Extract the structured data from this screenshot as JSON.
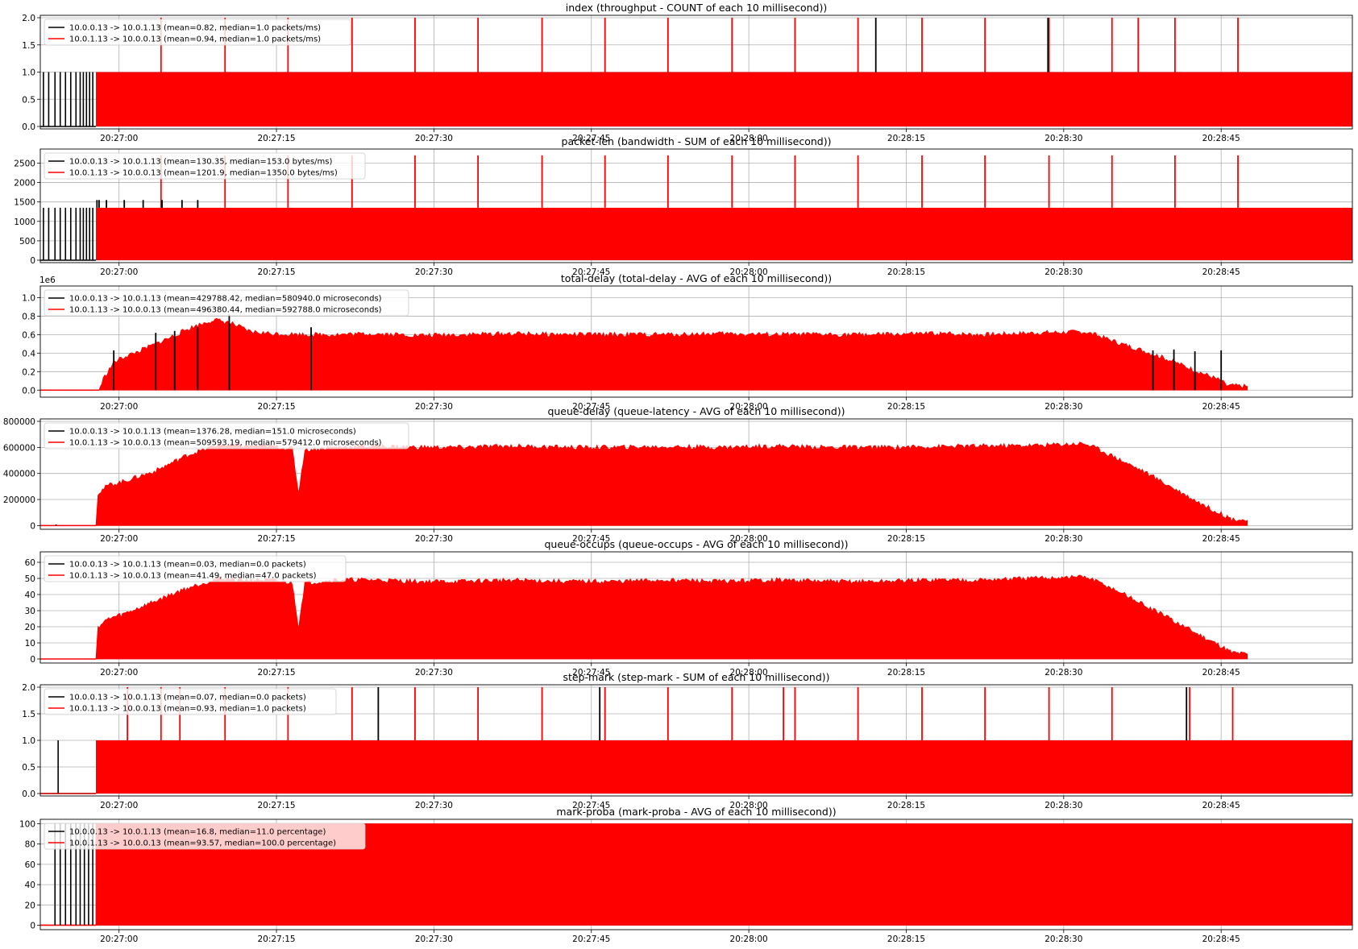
{
  "figure": {
    "x_ticks": [
      "20:27:00",
      "20:27:15",
      "20:27:30",
      "20:27:45",
      "20:28:00",
      "20:28:15",
      "20:28:30",
      "20:28:45"
    ],
    "series_colors": [
      "#000000",
      "#ff0000"
    ]
  },
  "chart_data": [
    {
      "type": "line",
      "title": "index (throughput - COUNT of each 10 millisecond))",
      "ylim": [
        0,
        2
      ],
      "y_ticks": [
        "0.0",
        "0.5",
        "1.0",
        "1.5",
        "2.0"
      ],
      "y_offset": "",
      "baseline": 1.0,
      "legend": [
        "10.0.0.13 -> 10.0.1.13 (mean=0.82, median=1.0 packets/ms)",
        "10.0.1.13 -> 10.0.0.13 (mean=0.94, median=1.0 packets/ms)"
      ],
      "black_spikes": [
        0.3,
        0.8,
        1.4,
        1.9,
        2.4,
        2.9,
        3.4,
        3.8,
        4.1,
        4.4,
        4.7,
        5.0,
        86.5,
        88.2
      ],
      "black_value": 1.0,
      "black_peaks": [
        79.6,
        96.0
      ],
      "black_peak_value": 2.0,
      "red_spikes": [
        11.5,
        17.6,
        23.6,
        29.7,
        35.7,
        41.7,
        47.8,
        53.8,
        59.8,
        65.9,
        71.9,
        77.9,
        84.0,
        90.0,
        96.1,
        102.1,
        104.6,
        108.1,
        114.1
      ],
      "red_spike_value": 2.0
    },
    {
      "type": "line",
      "title": "packet-len (bandwidth - SUM of each 10 millisecond))",
      "ylim": [
        0,
        2800
      ],
      "y_ticks": [
        "0",
        "500",
        "1000",
        "1500",
        "2000",
        "2500"
      ],
      "y_offset": "",
      "baseline": 1350,
      "legend": [
        "10.0.0.13 -> 10.0.1.13 (mean=130.35, median=153.0 bytes/ms)",
        "10.0.1.13 -> 10.0.0.13 (mean=1201.9, median=1350.0 bytes/ms)"
      ],
      "black_spikes": [
        0.3,
        0.8,
        1.4,
        1.9,
        2.4,
        2.9,
        3.4,
        3.8,
        4.1,
        4.4,
        4.7,
        5.0
      ],
      "black_value": 1350,
      "black_peaks": [
        5.4,
        5.6,
        6.3,
        8.0,
        9.8,
        11.6,
        13.5,
        15.0
      ],
      "black_peak_value": 1550,
      "red_spikes": [
        11.5,
        17.6,
        23.6,
        29.7,
        35.7,
        41.7,
        47.8,
        53.8,
        59.8,
        65.9,
        71.9,
        77.9,
        84.0,
        90.0,
        96.1,
        102.1,
        108.1,
        114.1
      ],
      "red_spike_value": 2700
    },
    {
      "type": "area",
      "title": "total-delay (total-delay - AVG of each 10 millisecond))",
      "ylim": [
        -0.05,
        1.1
      ],
      "y_ticks": [
        "0.0",
        "0.2",
        "0.4",
        "0.6",
        "0.8",
        "1.0"
      ],
      "y_offset": "1e6",
      "envelope": [
        [
          0,
          0
        ],
        [
          5.6,
          0
        ],
        [
          6.0,
          0.12
        ],
        [
          7.0,
          0.3
        ],
        [
          8.0,
          0.36
        ],
        [
          9.0,
          0.4
        ],
        [
          10.0,
          0.45
        ],
        [
          11.0,
          0.5
        ],
        [
          12.0,
          0.55
        ],
        [
          13.0,
          0.6
        ],
        [
          14.0,
          0.66
        ],
        [
          15.0,
          0.7
        ],
        [
          16.5,
          0.76
        ],
        [
          18.0,
          0.73
        ],
        [
          20.0,
          0.63
        ],
        [
          22.0,
          0.61
        ],
        [
          25.0,
          0.6
        ],
        [
          28.0,
          0.6
        ],
        [
          32.0,
          0.61
        ],
        [
          36.0,
          0.59
        ],
        [
          40.0,
          0.6
        ],
        [
          45.0,
          0.61
        ],
        [
          50.0,
          0.6
        ],
        [
          55.0,
          0.6
        ],
        [
          60.0,
          0.6
        ],
        [
          65.0,
          0.61
        ],
        [
          70.0,
          0.6
        ],
        [
          75.0,
          0.6
        ],
        [
          80.0,
          0.6
        ],
        [
          85.0,
          0.61
        ],
        [
          90.0,
          0.6
        ],
        [
          95.0,
          0.62
        ],
        [
          99.5,
          0.63
        ],
        [
          101.0,
          0.58
        ],
        [
          103.0,
          0.5
        ],
        [
          105.0,
          0.43
        ],
        [
          107.0,
          0.35
        ],
        [
          109.0,
          0.26
        ],
        [
          111.0,
          0.17
        ],
        [
          112.5,
          0.1
        ],
        [
          113.0,
          0.05
        ],
        [
          115.0,
          0.04
        ]
      ],
      "legend": [
        "10.0.0.13 -> 10.0.1.13 (mean=429788.42, median=580940.0 microseconds)",
        "10.0.1.13 -> 10.0.0.13 (mean=496380.44, median=592788.0 microseconds)"
      ],
      "black_peaks": [
        [
          7.0,
          0.43
        ],
        [
          11.0,
          0.62
        ],
        [
          12.8,
          0.64
        ],
        [
          15.0,
          0.68
        ],
        [
          18.0,
          0.82
        ],
        [
          25.8,
          0.68
        ],
        [
          106.0,
          0.43
        ],
        [
          108.0,
          0.44
        ],
        [
          110.0,
          0.42
        ],
        [
          112.5,
          0.43
        ]
      ]
    },
    {
      "type": "area",
      "title": "queue-delay (queue-latency - AVG of each 10 millisecond))",
      "ylim": [
        -10000,
        800000
      ],
      "y_ticks": [
        "0",
        "200000",
        "400000",
        "600000",
        "800000"
      ],
      "y_offset": "",
      "envelope": [
        [
          0,
          0
        ],
        [
          5.3,
          0
        ],
        [
          5.5,
          250000
        ],
        [
          6.5,
          310000
        ],
        [
          8.0,
          340000
        ],
        [
          9.5,
          380000
        ],
        [
          11.0,
          420000
        ],
        [
          12.5,
          480000
        ],
        [
          14.0,
          540000
        ],
        [
          15.5,
          580000
        ],
        [
          17.0,
          620000
        ],
        [
          19.0,
          610000
        ],
        [
          21.0,
          610000
        ],
        [
          23.0,
          600000
        ],
        [
          24.0,
          590000
        ],
        [
          24.6,
          250000
        ],
        [
          25.2,
          580000
        ],
        [
          28.0,
          600000
        ],
        [
          32.0,
          610000
        ],
        [
          36.0,
          600000
        ],
        [
          40.0,
          600000
        ],
        [
          45.0,
          610000
        ],
        [
          50.0,
          600000
        ],
        [
          55.0,
          600000
        ],
        [
          60.0,
          605000
        ],
        [
          65.0,
          600000
        ],
        [
          70.0,
          610000
        ],
        [
          75.0,
          600000
        ],
        [
          80.0,
          600000
        ],
        [
          85.0,
          605000
        ],
        [
          90.0,
          610000
        ],
        [
          95.0,
          615000
        ],
        [
          99.5,
          630000
        ],
        [
          101.0,
          580000
        ],
        [
          103.0,
          500000
        ],
        [
          105.0,
          420000
        ],
        [
          107.0,
          330000
        ],
        [
          109.0,
          240000
        ],
        [
          111.0,
          150000
        ],
        [
          112.5,
          90000
        ],
        [
          113.5,
          50000
        ],
        [
          115.0,
          40000
        ]
      ],
      "legend": [
        "10.0.0.13 -> 10.0.1.13 (mean=1376.28, median=151.0 microseconds)",
        "10.0.1.13 -> 10.0.0.13 (mean=509593.19, median=579412.0 microseconds)"
      ],
      "black_peaks": [
        [
          1.5,
          8000
        ]
      ]
    },
    {
      "type": "area",
      "title": "queue-occups (queue-occups - AVG of each 10 millisecond))",
      "ylim": [
        -1,
        65
      ],
      "y_ticks": [
        "0",
        "10",
        "20",
        "30",
        "40",
        "50",
        "60"
      ],
      "y_offset": "",
      "envelope": [
        [
          0,
          0
        ],
        [
          5.3,
          0
        ],
        [
          5.5,
          20
        ],
        [
          6.5,
          25
        ],
        [
          8.0,
          28
        ],
        [
          9.5,
          32
        ],
        [
          11.0,
          36
        ],
        [
          12.5,
          40
        ],
        [
          14.0,
          44
        ],
        [
          15.5,
          47
        ],
        [
          17.0,
          50
        ],
        [
          19.0,
          49
        ],
        [
          21.0,
          49
        ],
        [
          23.0,
          48
        ],
        [
          24.0,
          47
        ],
        [
          24.6,
          20
        ],
        [
          25.2,
          47
        ],
        [
          28.0,
          49
        ],
        [
          32.0,
          49
        ],
        [
          36.0,
          48
        ],
        [
          40.0,
          48
        ],
        [
          45.0,
          49
        ],
        [
          50.0,
          48
        ],
        [
          55.0,
          48
        ],
        [
          60.0,
          49
        ],
        [
          65.0,
          48
        ],
        [
          70.0,
          49
        ],
        [
          75.0,
          48
        ],
        [
          80.0,
          48
        ],
        [
          85.0,
          49
        ],
        [
          90.0,
          49
        ],
        [
          95.0,
          50
        ],
        [
          99.5,
          51
        ],
        [
          101.0,
          47
        ],
        [
          103.0,
          41
        ],
        [
          105.0,
          34
        ],
        [
          107.0,
          27
        ],
        [
          109.0,
          20
        ],
        [
          111.0,
          13
        ],
        [
          112.5,
          8
        ],
        [
          113.5,
          4
        ],
        [
          115.0,
          3
        ]
      ],
      "legend": [
        "10.0.0.13 -> 10.0.1.13 (mean=0.03, median=0.0 packets)",
        "10.0.1.13 -> 10.0.0.13 (mean=41.49, median=47.0 packets)"
      ],
      "black_peaks": []
    },
    {
      "type": "line",
      "title": "step-mark (step-mark - SUM of each 10 millisecond))",
      "ylim": [
        0,
        2
      ],
      "y_ticks": [
        "0.0",
        "0.5",
        "1.0",
        "1.5",
        "2.0"
      ],
      "y_offset": "",
      "baseline": 1.0,
      "baseline_start": 5.3,
      "legend": [
        "10.0.0.13 -> 10.0.1.13 (mean=0.07, median=0.0 packets)",
        "10.0.1.13 -> 10.0.0.13 (mean=0.93, median=1.0 packets)"
      ],
      "black_spikes": [
        1.7
      ],
      "black_value": 1.0,
      "black_peaks": [
        32.2,
        53.3,
        109.2
      ],
      "black_peak_value": 2.0,
      "red_spikes": [
        8.3,
        11.5,
        13.3,
        17.6,
        23.6,
        29.7,
        35.7,
        41.7,
        47.8,
        53.8,
        59.8,
        65.9,
        70.8,
        71.9,
        77.9,
        84.0,
        90.0,
        96.1,
        102.1,
        109.5,
        113.6
      ],
      "red_spike_value": 2.0
    },
    {
      "type": "area",
      "title": "mark-proba (mark-proba - AVG of each 10 millisecond))",
      "ylim": [
        -2,
        102
      ],
      "y_ticks": [
        "0",
        "20",
        "40",
        "60",
        "80",
        "100"
      ],
      "y_offset": "",
      "envelope": [
        [
          0,
          0
        ],
        [
          5.3,
          0
        ],
        [
          5.3,
          100
        ],
        [
          125.0,
          100
        ]
      ],
      "legend": [
        "10.0.0.13 -> 10.0.1.13 (mean=16.8, median=11.0 percentage)",
        "10.0.1.13 -> 10.0.0.13 (mean=93.57, median=100.0 percentage)"
      ],
      "black_spikes": [
        1.4,
        1.9,
        2.4,
        2.9,
        3.4,
        3.8,
        4.2,
        4.6,
        5.0
      ],
      "black_value": 100,
      "black_peaks": []
    }
  ]
}
